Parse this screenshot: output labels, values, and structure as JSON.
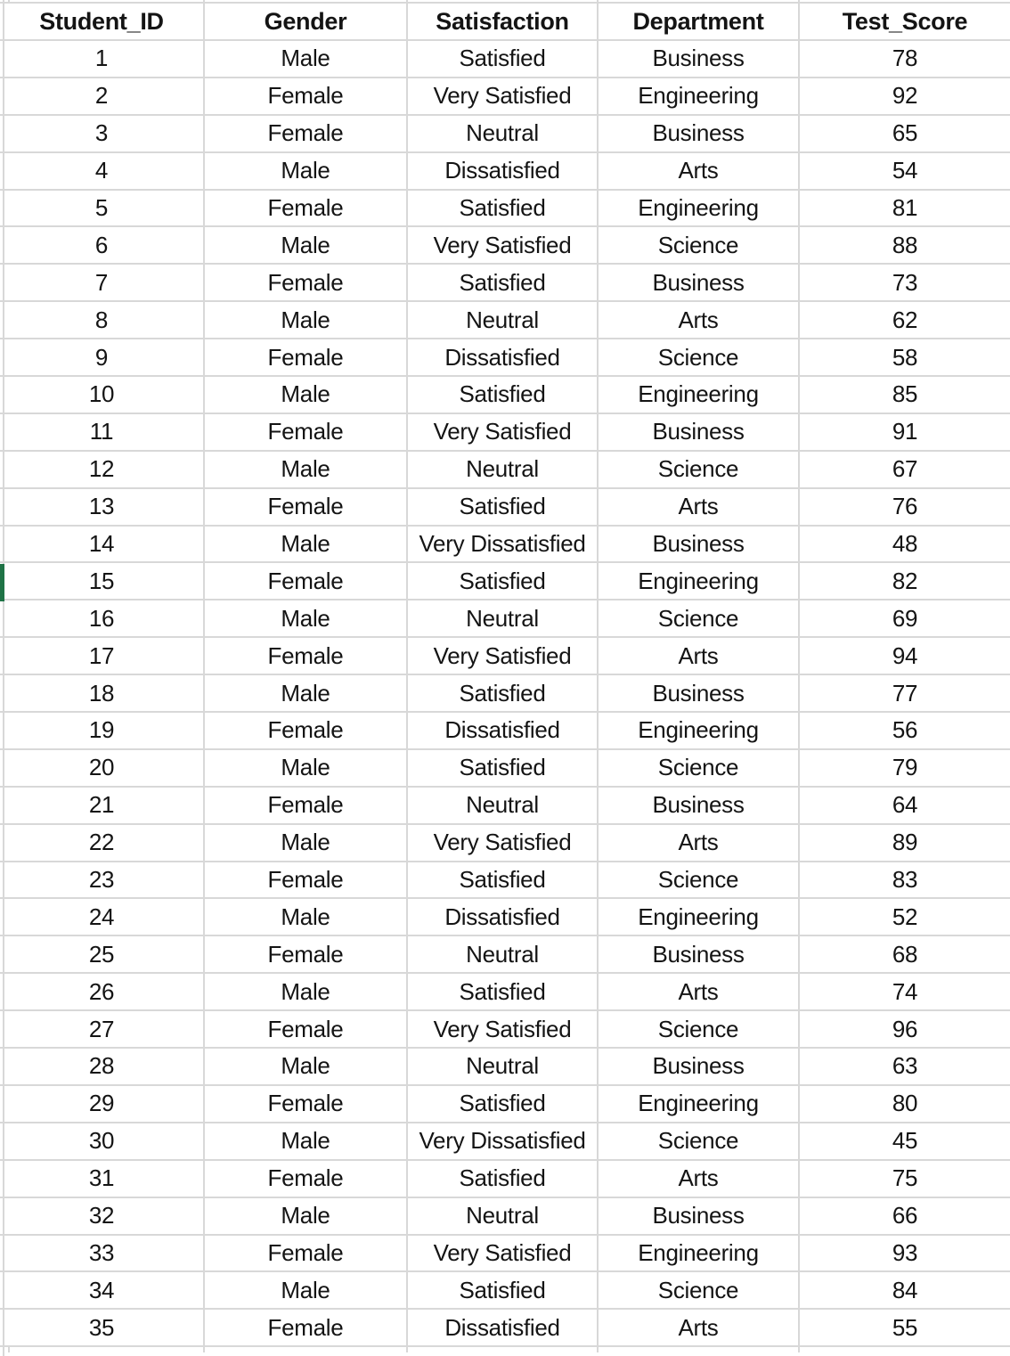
{
  "app": {
    "type": "spreadsheet-grid-view"
  },
  "colors": {
    "background": "#ffffff",
    "gridline": "#d8d8d8",
    "text": "#141414",
    "selection_marker_green": "#1f7346"
  },
  "table": {
    "columns": [
      "Student_ID",
      "Gender",
      "Satisfaction",
      "Department",
      "Test_Score"
    ],
    "rows": [
      [
        1,
        "Male",
        "Satisfied",
        "Business",
        78
      ],
      [
        2,
        "Female",
        "Very Satisfied",
        "Engineering",
        92
      ],
      [
        3,
        "Female",
        "Neutral",
        "Business",
        65
      ],
      [
        4,
        "Male",
        "Dissatisfied",
        "Arts",
        54
      ],
      [
        5,
        "Female",
        "Satisfied",
        "Engineering",
        81
      ],
      [
        6,
        "Male",
        "Very Satisfied",
        "Science",
        88
      ],
      [
        7,
        "Female",
        "Satisfied",
        "Business",
        73
      ],
      [
        8,
        "Male",
        "Neutral",
        "Arts",
        62
      ],
      [
        9,
        "Female",
        "Dissatisfied",
        "Science",
        58
      ],
      [
        10,
        "Male",
        "Satisfied",
        "Engineering",
        85
      ],
      [
        11,
        "Female",
        "Very Satisfied",
        "Business",
        91
      ],
      [
        12,
        "Male",
        "Neutral",
        "Science",
        67
      ],
      [
        13,
        "Female",
        "Satisfied",
        "Arts",
        76
      ],
      [
        14,
        "Male",
        "Very Dissatisfied",
        "Business",
        48
      ],
      [
        15,
        "Female",
        "Satisfied",
        "Engineering",
        82
      ],
      [
        16,
        "Male",
        "Neutral",
        "Science",
        69
      ],
      [
        17,
        "Female",
        "Very Satisfied",
        "Arts",
        94
      ],
      [
        18,
        "Male",
        "Satisfied",
        "Business",
        77
      ],
      [
        19,
        "Female",
        "Dissatisfied",
        "Engineering",
        56
      ],
      [
        20,
        "Male",
        "Satisfied",
        "Science",
        79
      ],
      [
        21,
        "Female",
        "Neutral",
        "Business",
        64
      ],
      [
        22,
        "Male",
        "Very Satisfied",
        "Arts",
        89
      ],
      [
        23,
        "Female",
        "Satisfied",
        "Science",
        83
      ],
      [
        24,
        "Male",
        "Dissatisfied",
        "Engineering",
        52
      ],
      [
        25,
        "Female",
        "Neutral",
        "Business",
        68
      ],
      [
        26,
        "Male",
        "Satisfied",
        "Arts",
        74
      ],
      [
        27,
        "Female",
        "Very Satisfied",
        "Science",
        96
      ],
      [
        28,
        "Male",
        "Neutral",
        "Business",
        63
      ],
      [
        29,
        "Female",
        "Satisfied",
        "Engineering",
        80
      ],
      [
        30,
        "Male",
        "Very Dissatisfied",
        "Science",
        45
      ],
      [
        31,
        "Female",
        "Satisfied",
        "Arts",
        75
      ],
      [
        32,
        "Male",
        "Neutral",
        "Business",
        66
      ],
      [
        33,
        "Female",
        "Very Satisfied",
        "Engineering",
        93
      ],
      [
        34,
        "Male",
        "Satisfied",
        "Science",
        84
      ],
      [
        35,
        "Female",
        "Dissatisfied",
        "Arts",
        55
      ]
    ],
    "selection": {
      "marked_row_student_id": 15
    }
  }
}
